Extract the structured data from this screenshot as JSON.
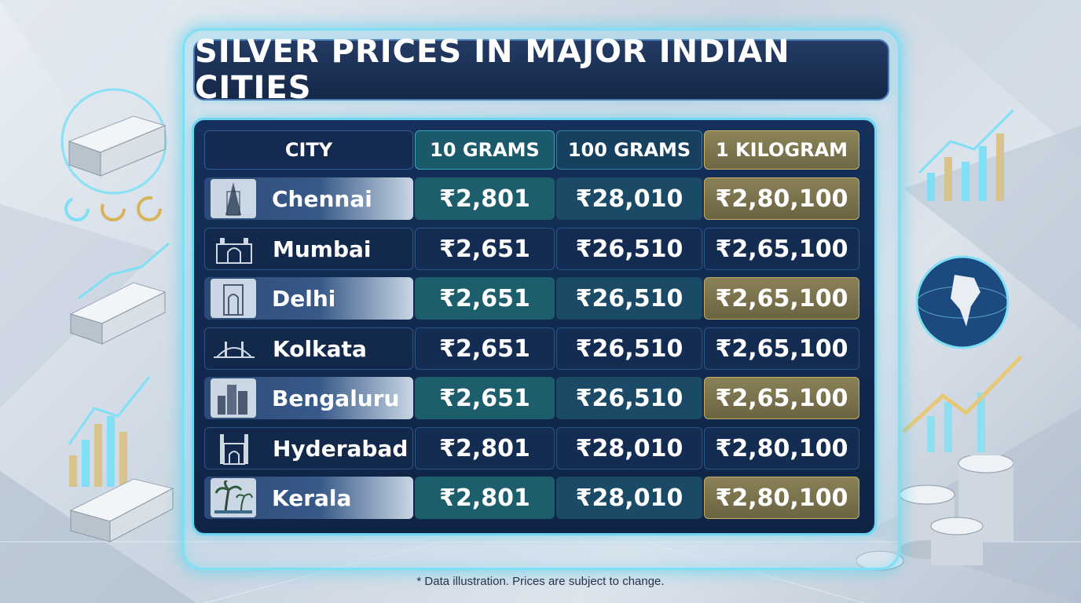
{
  "title": "SILVER PRICES IN MAJOR INDIAN CITIES",
  "columns": [
    "CITY",
    "10 GRAMS",
    "100 GRAMS",
    "1 KILOGRAM"
  ],
  "rows": [
    {
      "city": "Chennai",
      "icon": "temple-icon",
      "g10": "₹2,801",
      "g100": "₹28,010",
      "kg": "₹2,80,100"
    },
    {
      "city": "Mumbai",
      "icon": "gateway-icon",
      "g10": "₹2,651",
      "g100": "₹26,510",
      "kg": "₹2,65,100"
    },
    {
      "city": "Delhi",
      "icon": "india-gate-icon",
      "g10": "₹2,651",
      "g100": "₹26,510",
      "kg": "₹2,65,100"
    },
    {
      "city": "Kolkata",
      "icon": "bridge-icon",
      "g10": "₹2,651",
      "g100": "₹26,510",
      "kg": "₹2,65,100"
    },
    {
      "city": "Bengaluru",
      "icon": "skyline-icon",
      "g10": "₹2,651",
      "g100": "₹26,510",
      "kg": "₹2,65,100"
    },
    {
      "city": "Hyderabad",
      "icon": "charminar-icon",
      "g10": "₹2,801",
      "g100": "₹28,010",
      "kg": "₹2,80,100"
    },
    {
      "city": "Kerala",
      "icon": "palm-tree-icon",
      "g10": "₹2,801",
      "g100": "₹28,010",
      "kg": "₹2,80,100"
    }
  ],
  "footnote": "* Data illustration. Prices are subject to change.",
  "colors": {
    "accent_glow": "#7fe0f5",
    "navy": "#15305a",
    "gold": "#8a8157",
    "teal": "#1c5e6c"
  }
}
